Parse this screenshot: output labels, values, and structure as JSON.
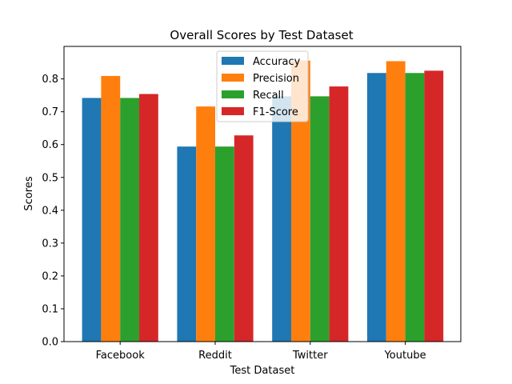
{
  "chart_data": {
    "type": "bar",
    "title": "Overall Scores by Test Dataset",
    "xlabel": "Test Dataset",
    "ylabel": "Scores",
    "categories": [
      "Facebook",
      "Reddit",
      "Twitter",
      "Youtube"
    ],
    "series": [
      {
        "name": "Accuracy",
        "color": "#1f77b4",
        "values": [
          0.742,
          0.594,
          0.747,
          0.818
        ]
      },
      {
        "name": "Precision",
        "color": "#ff7f0e",
        "values": [
          0.809,
          0.716,
          0.856,
          0.854
        ]
      },
      {
        "name": "Recall",
        "color": "#2ca02c",
        "values": [
          0.742,
          0.594,
          0.747,
          0.818
        ]
      },
      {
        "name": "F1-Score",
        "color": "#d62728",
        "values": [
          0.754,
          0.628,
          0.777,
          0.825
        ]
      }
    ],
    "ylim": [
      0,
      0.899
    ],
    "yticks": [
      "0.0",
      "0.1",
      "0.2",
      "0.3",
      "0.4",
      "0.5",
      "0.6",
      "0.7",
      "0.8"
    ],
    "legend_position": "top-center",
    "grid": false
  }
}
